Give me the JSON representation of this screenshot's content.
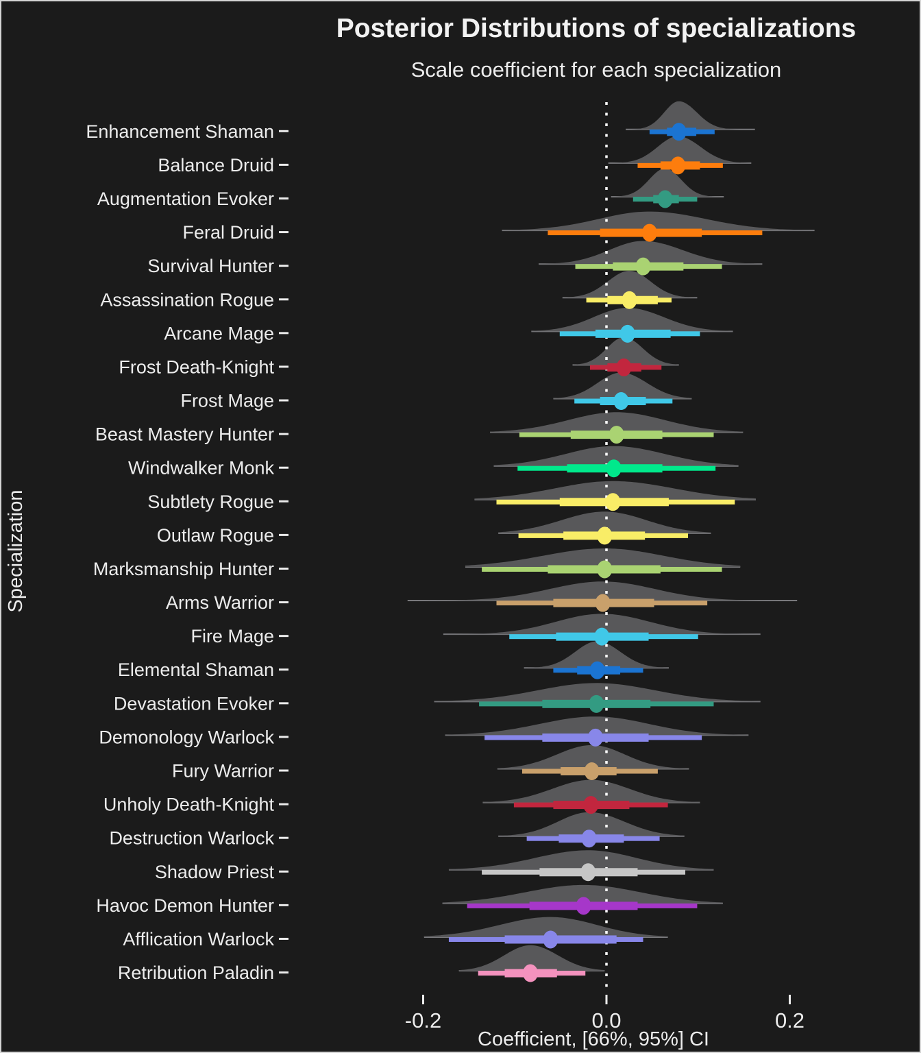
{
  "chart_data": {
    "type": "interval",
    "subtype": "halfeye_posterior_distributions",
    "title": "Posterior Distributions of specializations",
    "subtitle": "Scale coefficient for each specialization",
    "xlabel": "Coefficient, [66%, 95%] CI",
    "ylabel": "Specialization",
    "x_ticks": [
      -0.2,
      0.0,
      0.2
    ],
    "x_tick_labels": [
      "-0.2",
      "0.0",
      "0.2"
    ],
    "xlim": [
      -0.34,
      0.34
    ],
    "reference_line_x": 0.0,
    "grid": "off",
    "legend": "none",
    "interval_widths": [
      "66%",
      "95%"
    ],
    "rows": [
      {
        "label": "Enhancement Shaman",
        "color": "#1B74D2",
        "median": 0.079,
        "ci66": [
          0.066,
          0.098
        ],
        "ci95": [
          0.047,
          0.118
        ],
        "support": [
          0.021,
          0.162
        ]
      },
      {
        "label": "Balance Druid",
        "color": "#FD7D0D",
        "median": 0.078,
        "ci66": [
          0.059,
          0.102
        ],
        "ci95": [
          0.034,
          0.127
        ],
        "support": [
          0.002,
          0.158
        ]
      },
      {
        "label": "Augmentation Evoker",
        "color": "#339B82",
        "median": 0.064,
        "ci66": [
          0.051,
          0.079
        ],
        "ci95": [
          0.029,
          0.099
        ],
        "support": [
          0.005,
          0.128
        ]
      },
      {
        "label": "Feral Druid",
        "color": "#FD7D0D",
        "median": 0.047,
        "ci66": [
          -0.007,
          0.104
        ],
        "ci95": [
          -0.064,
          0.17
        ],
        "support": [
          -0.114,
          0.227
        ]
      },
      {
        "label": "Survival Hunter",
        "color": "#AAD372",
        "median": 0.04,
        "ci66": [
          0.007,
          0.084
        ],
        "ci95": [
          -0.034,
          0.126
        ],
        "support": [
          -0.074,
          0.17
        ]
      },
      {
        "label": "Assassination Rogue",
        "color": "#F9ED67",
        "median": 0.025,
        "ci66": [
          0.001,
          0.056
        ],
        "ci95": [
          -0.022,
          0.071
        ],
        "support": [
          -0.048,
          0.099
        ]
      },
      {
        "label": "Arcane Mage",
        "color": "#40C8E8",
        "median": 0.023,
        "ci66": [
          -0.012,
          0.07
        ],
        "ci95": [
          -0.051,
          0.102
        ],
        "support": [
          -0.082,
          0.138
        ]
      },
      {
        "label": "Frost Death-Knight",
        "color": "#C2263E",
        "median": 0.019,
        "ci66": [
          0.001,
          0.038
        ],
        "ci95": [
          -0.018,
          0.06
        ],
        "support": [
          -0.037,
          0.079
        ]
      },
      {
        "label": "Frost Mage",
        "color": "#40C8E8",
        "median": 0.016,
        "ci66": [
          -0.007,
          0.043
        ],
        "ci95": [
          -0.035,
          0.072
        ],
        "support": [
          -0.058,
          0.093
        ]
      },
      {
        "label": "Beast Mastery Hunter",
        "color": "#AAD372",
        "median": 0.011,
        "ci66": [
          -0.039,
          0.061
        ],
        "ci95": [
          -0.095,
          0.117
        ],
        "support": [
          -0.127,
          0.149
        ]
      },
      {
        "label": "Windwalker Monk",
        "color": "#00E98C",
        "median": 0.008,
        "ci66": [
          -0.043,
          0.061
        ],
        "ci95": [
          -0.097,
          0.119
        ],
        "support": [
          -0.123,
          0.144
        ]
      },
      {
        "label": "Subtlety Rogue",
        "color": "#F9ED67",
        "median": 0.007,
        "ci66": [
          -0.051,
          0.068
        ],
        "ci95": [
          -0.12,
          0.14
        ],
        "support": [
          -0.144,
          0.163
        ]
      },
      {
        "label": "Outlaw Rogue",
        "color": "#F9ED67",
        "median": -0.002,
        "ci66": [
          -0.047,
          0.042
        ],
        "ci95": [
          -0.096,
          0.089
        ],
        "support": [
          -0.118,
          0.114
        ]
      },
      {
        "label": "Marksmanship Hunter",
        "color": "#AAD372",
        "median": -0.002,
        "ci66": [
          -0.064,
          0.059
        ],
        "ci95": [
          -0.136,
          0.126
        ],
        "support": [
          -0.154,
          0.146
        ]
      },
      {
        "label": "Arms Warrior",
        "color": "#C9A06B",
        "median": -0.004,
        "ci66": [
          -0.058,
          0.052
        ],
        "ci95": [
          -0.12,
          0.11
        ],
        "support": [
          -0.217,
          0.208
        ]
      },
      {
        "label": "Fire Mage",
        "color": "#40C8E8",
        "median": -0.005,
        "ci66": [
          -0.055,
          0.046
        ],
        "ci95": [
          -0.106,
          0.1
        ],
        "support": [
          -0.178,
          0.168
        ]
      },
      {
        "label": "Elemental Shaman",
        "color": "#1B74D2",
        "median": -0.01,
        "ci66": [
          -0.032,
          0.015
        ],
        "ci95": [
          -0.058,
          0.04
        ],
        "support": [
          -0.09,
          0.068
        ]
      },
      {
        "label": "Devastation Evoker",
        "color": "#339B82",
        "median": -0.011,
        "ci66": [
          -0.07,
          0.048
        ],
        "ci95": [
          -0.139,
          0.117
        ],
        "support": [
          -0.188,
          0.168
        ]
      },
      {
        "label": "Demonology Warlock",
        "color": "#8887E9",
        "median": -0.012,
        "ci66": [
          -0.07,
          0.046
        ],
        "ci95": [
          -0.133,
          0.104
        ],
        "support": [
          -0.176,
          0.155
        ]
      },
      {
        "label": "Fury Warrior",
        "color": "#C9A06B",
        "median": -0.016,
        "ci66": [
          -0.05,
          0.011
        ],
        "ci95": [
          -0.092,
          0.056
        ],
        "support": [
          -0.119,
          0.09
        ]
      },
      {
        "label": "Unholy Death-Knight",
        "color": "#C2263E",
        "median": -0.017,
        "ci66": [
          -0.058,
          0.025
        ],
        "ci95": [
          -0.101,
          0.067
        ],
        "support": [
          -0.135,
          0.102
        ]
      },
      {
        "label": "Destruction Warlock",
        "color": "#8887E9",
        "median": -0.019,
        "ci66": [
          -0.052,
          0.019
        ],
        "ci95": [
          -0.087,
          0.058
        ],
        "support": [
          -0.118,
          0.085
        ]
      },
      {
        "label": "Shadow Priest",
        "color": "#C6C6C6",
        "median": -0.02,
        "ci66": [
          -0.073,
          0.034
        ],
        "ci95": [
          -0.136,
          0.086
        ],
        "support": [
          -0.172,
          0.117
        ]
      },
      {
        "label": "Havoc Demon Hunter",
        "color": "#A637C9",
        "median": -0.025,
        "ci66": [
          -0.084,
          0.034
        ],
        "ci95": [
          -0.152,
          0.099
        ],
        "support": [
          -0.179,
          0.127
        ]
      },
      {
        "label": "Afflication Warlock",
        "color": "#8887E9",
        "median": -0.061,
        "ci66": [
          -0.111,
          0.011
        ],
        "ci95": [
          -0.172,
          0.04
        ],
        "support": [
          -0.199,
          0.067
        ]
      },
      {
        "label": "Retribution Paladin",
        "color": "#F492BE",
        "median": -0.083,
        "ci66": [
          -0.111,
          -0.054
        ],
        "ci95": [
          -0.14,
          -0.023
        ],
        "support": [
          -0.161,
          -0.002
        ]
      }
    ]
  },
  "style": {
    "background": "#1B1B1B",
    "density_fill": "#58585A",
    "support_line_color": "#7B7B7E",
    "text_color": "#ECECEC",
    "reference_line_color": "#FFFFFF",
    "frame_border_color": "#D4D4D4"
  }
}
